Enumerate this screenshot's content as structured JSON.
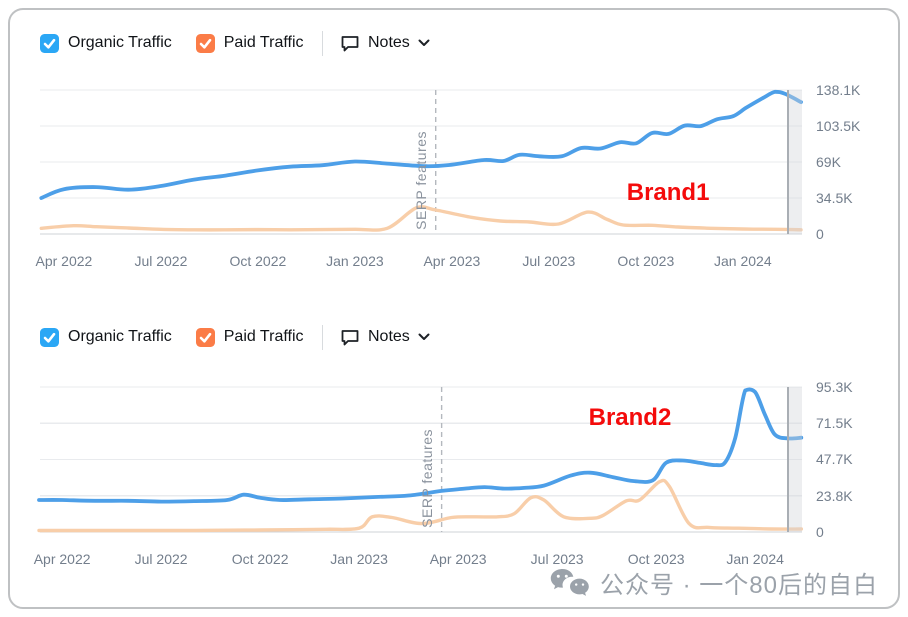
{
  "colors": {
    "organic_line": "#4d9fe8",
    "paid_line": "#f8cea9",
    "organic_checkbox": "#2ba7f5",
    "paid_checkbox": "#fb7c47",
    "brand_label": "#f40b0b",
    "gridline": "#e9ebee",
    "gridline_zero": "#cfd3d7",
    "axis_text": "#737e8c",
    "serp_line": "#b4b8be",
    "watermark": "#9ba2aa"
  },
  "toolbar": {
    "organic_label": "Organic Traffic",
    "paid_label": "Paid Traffic",
    "notes_label": "Notes",
    "organic_checked": true,
    "paid_checked": true
  },
  "watermark": {
    "icon": "wechat-icon",
    "text": "公众号 · 一个80后的自白"
  },
  "charts": [
    {
      "chart_data": {
        "type": "line",
        "annotation": "Brand1",
        "x_axis": {
          "domain_months": [
            -0.74,
            22.83
          ],
          "tick_months": [
            0,
            3,
            6,
            9,
            12,
            15,
            18,
            21
          ],
          "tick_labels": [
            "Apr 2022",
            "Jul 2022",
            "Oct 2022",
            "Jan 2023",
            "Apr 2023",
            "Jul 2023",
            "Oct 2023",
            "Jan 2024"
          ]
        },
        "y_axis": {
          "max": 138.1,
          "unit": "K",
          "ticks": [
            0,
            34.5,
            69,
            103.5,
            138.1
          ],
          "tick_labels": [
            "0",
            "34.5K",
            "69K",
            "103.5K",
            "138.1K"
          ]
        },
        "serp_marker": {
          "label": "SERP features",
          "month": 11.5
        },
        "legend_position": "top",
        "grid": true,
        "series": [
          {
            "name": "Organic Traffic",
            "color_key": "organic_line",
            "points": [
              [
                -0.7,
                34.5
              ],
              [
                0,
                43
              ],
              [
                1,
                45
              ],
              [
                2,
                42.5
              ],
              [
                3,
                46
              ],
              [
                4,
                52
              ],
              [
                5,
                56
              ],
              [
                6,
                61
              ],
              [
                7,
                64.5
              ],
              [
                8,
                66
              ],
              [
                9,
                69.5
              ],
              [
                10,
                67.5
              ],
              [
                11.2,
                65
              ],
              [
                12,
                66.5
              ],
              [
                13,
                71
              ],
              [
                13.6,
                70
              ],
              [
                14.1,
                76
              ],
              [
                14.7,
                74.5
              ],
              [
                15.4,
                74.5
              ],
              [
                16,
                82.5
              ],
              [
                16.6,
                82
              ],
              [
                17.2,
                88
              ],
              [
                17.7,
                87
              ],
              [
                18.2,
                97
              ],
              [
                18.7,
                96
              ],
              [
                19.2,
                104
              ],
              [
                19.7,
                103.5
              ],
              [
                20.2,
                110
              ],
              [
                20.7,
                113
              ],
              [
                21.1,
                121
              ],
              [
                21.6,
                130
              ],
              [
                22,
                136.5
              ],
              [
                22.3,
                134.5
              ],
              [
                22.8,
                126.5
              ]
            ]
          },
          {
            "name": "Paid Traffic",
            "color_key": "paid_line",
            "points": [
              [
                -0.7,
                5.5
              ],
              [
                0.3,
                8
              ],
              [
                1,
                7
              ],
              [
                2,
                5.8
              ],
              [
                3,
                4.5
              ],
              [
                4,
                4
              ],
              [
                5,
                4
              ],
              [
                6,
                4.2
              ],
              [
                7,
                4
              ],
              [
                8,
                4.2
              ],
              [
                9,
                4.5
              ],
              [
                10,
                5.5
              ],
              [
                10.9,
                25
              ],
              [
                11.5,
                23
              ],
              [
                12.6,
                16
              ],
              [
                13.5,
                12.5
              ],
              [
                14.4,
                11.5
              ],
              [
                15.3,
                9.6
              ],
              [
                16.2,
                21
              ],
              [
                16.8,
                14
              ],
              [
                17.3,
                8.6
              ],
              [
                18.2,
                8.3
              ],
              [
                19,
                6.7
              ],
              [
                20,
                5.5
              ],
              [
                21,
                4.8
              ],
              [
                22,
                4.5
              ],
              [
                22.8,
                4
              ]
            ]
          }
        ]
      }
    },
    {
      "chart_data": {
        "type": "line",
        "annotation": "Brand2",
        "x_axis": {
          "domain_months": [
            -0.67,
            22.42
          ],
          "tick_months": [
            0,
            3,
            6,
            9,
            12,
            15,
            18,
            21
          ],
          "tick_labels": [
            "Apr 2022",
            "Jul 2022",
            "Oct 2022",
            "Jan 2023",
            "Apr 2023",
            "Jul 2023",
            "Oct 2023",
            "Jan 2024"
          ]
        },
        "y_axis": {
          "max": 95.3,
          "unit": "K",
          "ticks": [
            0,
            23.8,
            47.7,
            71.5,
            95.3
          ],
          "tick_labels": [
            "0",
            "23.8K",
            "47.7K",
            "71.5K",
            "95.3K"
          ]
        },
        "serp_marker": {
          "label": "SERP features",
          "month": 11.5
        },
        "legend_position": "top",
        "grid": true,
        "series": [
          {
            "name": "Organic Traffic",
            "color_key": "organic_line",
            "points": [
              [
                -0.7,
                21
              ],
              [
                0,
                21
              ],
              [
                1,
                20.5
              ],
              [
                2,
                20.5
              ],
              [
                3,
                20
              ],
              [
                4,
                20.3
              ],
              [
                5,
                21
              ],
              [
                5.5,
                24.5
              ],
              [
                6,
                22.5
              ],
              [
                6.6,
                21
              ],
              [
                7.5,
                21.5
              ],
              [
                8.5,
                22
              ],
              [
                9.5,
                23
              ],
              [
                10.5,
                24
              ],
              [
                11.5,
                27
              ],
              [
                12.2,
                28.5
              ],
              [
                12.8,
                29.5
              ],
              [
                13.4,
                28.5
              ],
              [
                14,
                29
              ],
              [
                14.6,
                30.5
              ],
              [
                15.4,
                37
              ],
              [
                16,
                39
              ],
              [
                16.7,
                36
              ],
              [
                17.3,
                33.5
              ],
              [
                17.9,
                34
              ],
              [
                18.3,
                45.5
              ],
              [
                18.8,
                47
              ],
              [
                19.3,
                45.5
              ],
              [
                19.8,
                44
              ],
              [
                20.1,
                46
              ],
              [
                20.4,
                62
              ],
              [
                20.7,
                93
              ],
              [
                21,
                92
              ],
              [
                21.3,
                77
              ],
              [
                21.6,
                64
              ],
              [
                22,
                61.5
              ],
              [
                22.4,
                62
              ]
            ]
          },
          {
            "name": "Paid Traffic",
            "color_key": "paid_line",
            "points": [
              [
                -0.7,
                1
              ],
              [
                0,
                1
              ],
              [
                1,
                1
              ],
              [
                2,
                1
              ],
              [
                3,
                1
              ],
              [
                4,
                1
              ],
              [
                5,
                1.2
              ],
              [
                6,
                1.3
              ],
              [
                7,
                1.5
              ],
              [
                8,
                1.8
              ],
              [
                9,
                2.5
              ],
              [
                9.4,
                10
              ],
              [
                10,
                9.5
              ],
              [
                10.9,
                5.5
              ],
              [
                11.8,
                9.5
              ],
              [
                12.5,
                10
              ],
              [
                13.2,
                10
              ],
              [
                13.7,
                12
              ],
              [
                14.2,
                22.5
              ],
              [
                14.6,
                21
              ],
              [
                15.2,
                10
              ],
              [
                16,
                9
              ],
              [
                16.4,
                11
              ],
              [
                17.1,
                20.5
              ],
              [
                17.5,
                21
              ],
              [
                18.1,
                33
              ],
              [
                18.4,
                30
              ],
              [
                19,
                5.5
              ],
              [
                19.6,
                3
              ],
              [
                20.5,
                2.5
              ],
              [
                21.5,
                2
              ],
              [
                22.4,
                2
              ]
            ]
          }
        ]
      }
    }
  ]
}
